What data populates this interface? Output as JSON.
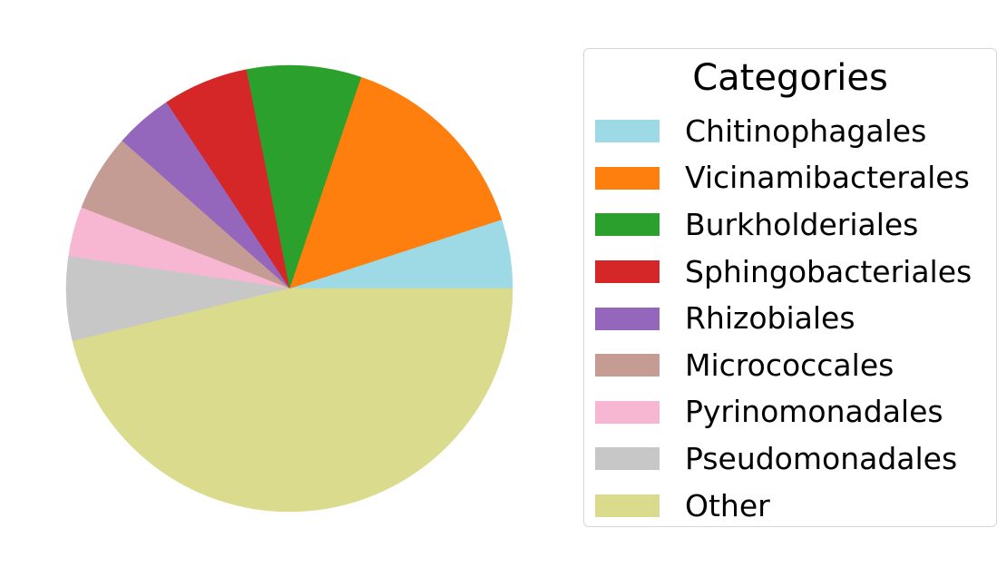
{
  "chart_data": {
    "type": "pie",
    "title": "",
    "legend": {
      "title": "Categories",
      "placement": "right"
    },
    "start_angle_deg": 0,
    "direction": "counterclockwise",
    "slices": [
      {
        "label": "Chitinophagales",
        "value": 5.0,
        "color": "#9edae5"
      },
      {
        "label": "Vicinamibacterales",
        "value": 14.8,
        "color": "#ff7f0e"
      },
      {
        "label": "Burkholderiales",
        "value": 8.3,
        "color": "#2ca02c"
      },
      {
        "label": "Sphingobacteriales",
        "value": 6.2,
        "color": "#d62728"
      },
      {
        "label": "Rhizobiales",
        "value": 4.2,
        "color": "#9467bd"
      },
      {
        "label": "Micrococcales",
        "value": 5.6,
        "color": "#c49c94"
      },
      {
        "label": "Pyrinomonadales",
        "value": 3.6,
        "color": "#f7b6d2"
      },
      {
        "label": "Pseudomonadales",
        "value": 6.1,
        "color": "#c7c7c7"
      },
      {
        "label": "Other",
        "value": 46.2,
        "color": "#dbdb8d"
      }
    ]
  }
}
